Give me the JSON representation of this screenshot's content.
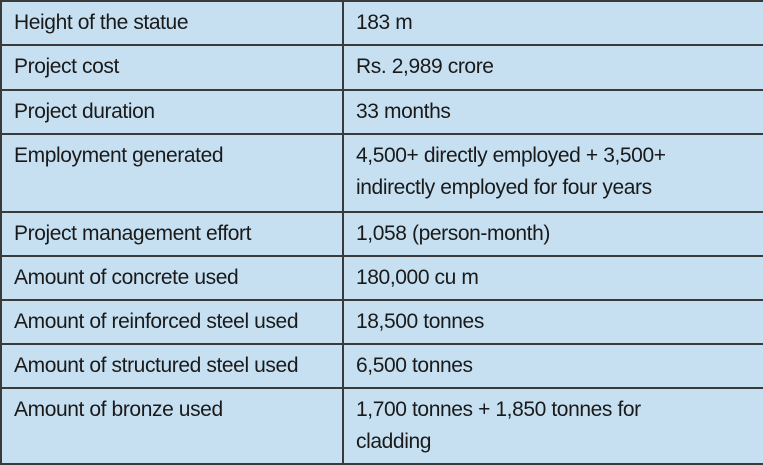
{
  "rows": [
    {
      "label": "Height of the statue",
      "value": "183 m"
    },
    {
      "label": "Project cost",
      "value": "Rs. 2,989 crore"
    },
    {
      "label": "Project duration",
      "value": "33 months"
    },
    {
      "label": "Employment generated",
      "value": "4,500+ directly employed + 3,500+ indirectly employed for four years"
    },
    {
      "label": "Project management effort",
      "value": "1,058 (person-month)"
    },
    {
      "label": "Amount of concrete used",
      "value": "180,000 cu m"
    },
    {
      "label": "Amount of reinforced steel used",
      "value": "18,500 tonnes"
    },
    {
      "label": "Amount of structured steel used",
      "value": "6,500 tonnes"
    },
    {
      "label": "Amount of bronze used",
      "value": "1,700 tonnes + 1,850 tonnes for cladding"
    }
  ],
  "colors": {
    "background": "#c6e0f2",
    "border": "#3a3a3a"
  }
}
